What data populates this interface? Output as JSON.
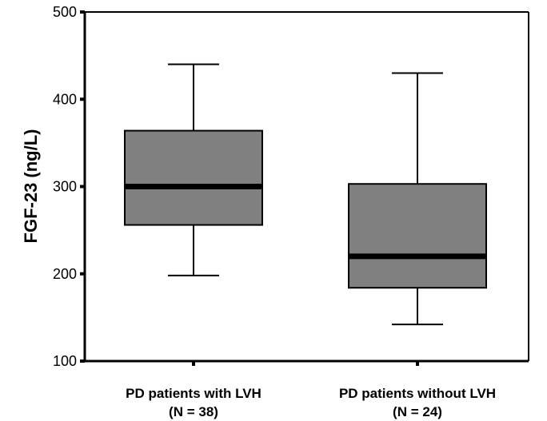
{
  "chart_data": {
    "type": "box",
    "ylabel": "FGF-23 (ng/L)",
    "xlabel": "",
    "ylim": [
      100,
      500
    ],
    "yticks": [
      100,
      200,
      300,
      400,
      500
    ],
    "grid": false,
    "colors": {
      "box_fill": "#808080",
      "stroke": "#000000"
    },
    "categories": [
      {
        "label": "PD patients with LVH",
        "n_label": "(N = 38)"
      },
      {
        "label": "PD patients without LVH",
        "n_label": "(N = 24)"
      }
    ],
    "boxes": [
      {
        "whisker_low": 198,
        "q1": 256,
        "median": 300,
        "q3": 364,
        "whisker_high": 440
      },
      {
        "whisker_low": 142,
        "q1": 184,
        "median": 220,
        "q3": 303,
        "whisker_high": 430
      }
    ]
  }
}
